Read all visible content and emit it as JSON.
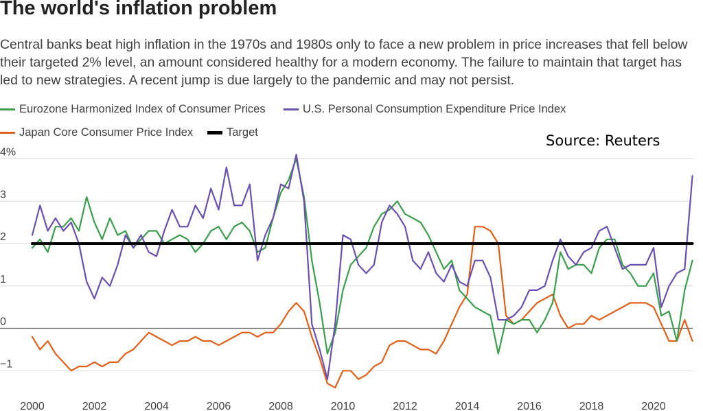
{
  "title": "The world's inflation problem",
  "subtitle": "Central banks beat high inflation in the 1970s and 1980s only to face a new problem in price increases that fell below their targeted 2% level, an amount considered healthy for a modern economy. The failure to maintain that target has led to new strategies. A recent jump is due largely to the pandemic and may not persist.",
  "source": "Source: Reuters",
  "colors": {
    "eurozone": "#3a9e4c",
    "us": "#6a4fb0",
    "japan": "#e0601a",
    "target": "#000000",
    "grid": "#d9d9d9",
    "zero_line": "#666666"
  },
  "chart_data": {
    "type": "line",
    "xlim": [
      2000,
      2021.5
    ],
    "ylim": [
      -1.5,
      4.2
    ],
    "x_ticks": [
      2000,
      2002,
      2004,
      2006,
      2008,
      2010,
      2012,
      2014,
      2016,
      2018,
      2020
    ],
    "x_tick_labels": [
      "2000",
      "2002",
      "2004",
      "2006",
      "2008",
      "2010",
      "2012",
      "2014",
      "2016",
      "2018",
      "2020"
    ],
    "y_ticks": [
      -1,
      0,
      1,
      2,
      3,
      4
    ],
    "y_tick_labels": [
      "−1",
      "0",
      "1",
      "2",
      "3",
      "4%"
    ],
    "grid": "horizontal",
    "legend_placement": "top-left",
    "series": [
      {
        "name": "Eurozone Harmonized Index of Consumer Prices",
        "color": "#3a9e4c",
        "points": [
          [
            2000.0,
            1.9
          ],
          [
            2000.25,
            2.1
          ],
          [
            2000.5,
            1.8
          ],
          [
            2000.75,
            2.4
          ],
          [
            2001.0,
            2.4
          ],
          [
            2001.25,
            2.6
          ],
          [
            2001.5,
            2.3
          ],
          [
            2001.75,
            3.1
          ],
          [
            2002.0,
            2.5
          ],
          [
            2002.25,
            2.1
          ],
          [
            2002.5,
            2.6
          ],
          [
            2002.75,
            2.2
          ],
          [
            2003.0,
            2.3
          ],
          [
            2003.25,
            1.9
          ],
          [
            2003.5,
            2.1
          ],
          [
            2003.75,
            2.3
          ],
          [
            2004.0,
            2.3
          ],
          [
            2004.25,
            2.0
          ],
          [
            2004.5,
            2.1
          ],
          [
            2004.75,
            2.2
          ],
          [
            2005.0,
            2.1
          ],
          [
            2005.25,
            1.8
          ],
          [
            2005.5,
            2.0
          ],
          [
            2005.75,
            2.3
          ],
          [
            2006.0,
            2.4
          ],
          [
            2006.25,
            2.1
          ],
          [
            2006.5,
            2.4
          ],
          [
            2006.75,
            2.5
          ],
          [
            2007.0,
            2.3
          ],
          [
            2007.25,
            1.8
          ],
          [
            2007.5,
            1.9
          ],
          [
            2007.75,
            2.6
          ],
          [
            2008.0,
            3.2
          ],
          [
            2008.25,
            3.5
          ],
          [
            2008.5,
            4.0
          ],
          [
            2008.75,
            3.1
          ],
          [
            2009.0,
            1.6
          ],
          [
            2009.25,
            0.6
          ],
          [
            2009.5,
            -0.6
          ],
          [
            2009.75,
            -0.1
          ],
          [
            2010.0,
            0.9
          ],
          [
            2010.25,
            1.5
          ],
          [
            2010.5,
            1.7
          ],
          [
            2010.75,
            1.9
          ],
          [
            2011.0,
            2.4
          ],
          [
            2011.25,
            2.7
          ],
          [
            2011.5,
            2.8
          ],
          [
            2011.75,
            3.0
          ],
          [
            2012.0,
            2.7
          ],
          [
            2012.25,
            2.6
          ],
          [
            2012.5,
            2.5
          ],
          [
            2012.75,
            2.2
          ],
          [
            2013.0,
            1.8
          ],
          [
            2013.25,
            1.4
          ],
          [
            2013.5,
            1.6
          ],
          [
            2013.75,
            0.9
          ],
          [
            2014.0,
            0.7
          ],
          [
            2014.25,
            0.5
          ],
          [
            2014.5,
            0.4
          ],
          [
            2014.75,
            0.3
          ],
          [
            2015.0,
            -0.6
          ],
          [
            2015.25,
            0.2
          ],
          [
            2015.5,
            0.1
          ],
          [
            2015.75,
            0.2
          ],
          [
            2016.0,
            0.2
          ],
          [
            2016.25,
            -0.1
          ],
          [
            2016.5,
            0.2
          ],
          [
            2016.75,
            0.6
          ],
          [
            2017.0,
            1.8
          ],
          [
            2017.25,
            1.4
          ],
          [
            2017.5,
            1.5
          ],
          [
            2017.75,
            1.5
          ],
          [
            2018.0,
            1.3
          ],
          [
            2018.25,
            1.9
          ],
          [
            2018.5,
            2.1
          ],
          [
            2018.75,
            2.1
          ],
          [
            2019.0,
            1.5
          ],
          [
            2019.25,
            1.3
          ],
          [
            2019.5,
            1.0
          ],
          [
            2019.75,
            1.0
          ],
          [
            2020.0,
            1.3
          ],
          [
            2020.25,
            0.3
          ],
          [
            2020.5,
            0.4
          ],
          [
            2020.75,
            -0.3
          ],
          [
            2021.0,
            0.9
          ],
          [
            2021.25,
            1.6
          ]
        ]
      },
      {
        "name": "U.S. Personal Consumption Expenditure Price Index",
        "color": "#6a4fb0",
        "points": [
          [
            2000.0,
            2.2
          ],
          [
            2000.25,
            2.9
          ],
          [
            2000.5,
            2.3
          ],
          [
            2000.75,
            2.6
          ],
          [
            2001.0,
            2.3
          ],
          [
            2001.25,
            2.5
          ],
          [
            2001.5,
            2.0
          ],
          [
            2001.75,
            1.1
          ],
          [
            2002.0,
            0.7
          ],
          [
            2002.25,
            1.2
          ],
          [
            2002.5,
            1.0
          ],
          [
            2002.75,
            1.5
          ],
          [
            2003.0,
            2.2
          ],
          [
            2003.25,
            1.9
          ],
          [
            2003.5,
            2.2
          ],
          [
            2003.75,
            1.8
          ],
          [
            2004.0,
            1.7
          ],
          [
            2004.25,
            2.3
          ],
          [
            2004.5,
            2.8
          ],
          [
            2004.75,
            2.4
          ],
          [
            2005.0,
            2.4
          ],
          [
            2005.25,
            2.9
          ],
          [
            2005.5,
            2.6
          ],
          [
            2005.75,
            3.3
          ],
          [
            2006.0,
            2.8
          ],
          [
            2006.25,
            3.8
          ],
          [
            2006.5,
            2.9
          ],
          [
            2006.75,
            2.9
          ],
          [
            2007.0,
            3.4
          ],
          [
            2007.25,
            1.6
          ],
          [
            2007.5,
            2.2
          ],
          [
            2007.75,
            2.6
          ],
          [
            2008.0,
            3.4
          ],
          [
            2008.25,
            3.3
          ],
          [
            2008.5,
            4.1
          ],
          [
            2008.75,
            3.0
          ],
          [
            2009.0,
            0.1
          ],
          [
            2009.25,
            -0.5
          ],
          [
            2009.5,
            -1.2
          ],
          [
            2009.75,
            0.1
          ],
          [
            2010.0,
            2.2
          ],
          [
            2010.25,
            2.1
          ],
          [
            2010.5,
            1.5
          ],
          [
            2010.75,
            1.3
          ],
          [
            2011.0,
            1.5
          ],
          [
            2011.25,
            2.5
          ],
          [
            2011.5,
            2.9
          ],
          [
            2011.75,
            2.7
          ],
          [
            2012.0,
            2.4
          ],
          [
            2012.25,
            1.6
          ],
          [
            2012.5,
            1.4
          ],
          [
            2012.75,
            1.8
          ],
          [
            2013.0,
            1.3
          ],
          [
            2013.25,
            1.1
          ],
          [
            2013.5,
            1.5
          ],
          [
            2013.75,
            1.1
          ],
          [
            2014.0,
            1.0
          ],
          [
            2014.25,
            1.6
          ],
          [
            2014.5,
            1.6
          ],
          [
            2014.75,
            1.2
          ],
          [
            2015.0,
            0.2
          ],
          [
            2015.25,
            0.2
          ],
          [
            2015.5,
            0.3
          ],
          [
            2015.75,
            0.5
          ],
          [
            2016.0,
            0.9
          ],
          [
            2016.25,
            0.9
          ],
          [
            2016.5,
            1.0
          ],
          [
            2016.75,
            1.6
          ],
          [
            2017.0,
            2.1
          ],
          [
            2017.25,
            1.7
          ],
          [
            2017.5,
            1.5
          ],
          [
            2017.75,
            1.8
          ],
          [
            2018.0,
            1.9
          ],
          [
            2018.25,
            2.3
          ],
          [
            2018.5,
            2.4
          ],
          [
            2018.75,
            1.9
          ],
          [
            2019.0,
            1.4
          ],
          [
            2019.25,
            1.5
          ],
          [
            2019.5,
            1.5
          ],
          [
            2019.75,
            1.5
          ],
          [
            2020.0,
            1.9
          ],
          [
            2020.25,
            0.5
          ],
          [
            2020.5,
            1.0
          ],
          [
            2020.75,
            1.3
          ],
          [
            2021.0,
            1.4
          ],
          [
            2021.25,
            3.6
          ]
        ]
      },
      {
        "name": "Japan Core Consumer Price Index",
        "color": "#e0601a",
        "points": [
          [
            2000.0,
            -0.2
          ],
          [
            2000.25,
            -0.5
          ],
          [
            2000.5,
            -0.3
          ],
          [
            2000.75,
            -0.6
          ],
          [
            2001.0,
            -0.8
          ],
          [
            2001.25,
            -1.0
          ],
          [
            2001.5,
            -0.9
          ],
          [
            2001.75,
            -0.9
          ],
          [
            2002.0,
            -0.8
          ],
          [
            2002.25,
            -0.9
          ],
          [
            2002.5,
            -0.8
          ],
          [
            2002.75,
            -0.8
          ],
          [
            2003.0,
            -0.6
          ],
          [
            2003.25,
            -0.5
          ],
          [
            2003.5,
            -0.3
          ],
          [
            2003.75,
            -0.1
          ],
          [
            2004.0,
            -0.2
          ],
          [
            2004.25,
            -0.3
          ],
          [
            2004.5,
            -0.4
          ],
          [
            2004.75,
            -0.3
          ],
          [
            2005.0,
            -0.3
          ],
          [
            2005.25,
            -0.2
          ],
          [
            2005.5,
            -0.3
          ],
          [
            2005.75,
            -0.3
          ],
          [
            2006.0,
            -0.4
          ],
          [
            2006.25,
            -0.3
          ],
          [
            2006.5,
            -0.2
          ],
          [
            2006.75,
            -0.1
          ],
          [
            2007.0,
            -0.1
          ],
          [
            2007.25,
            -0.2
          ],
          [
            2007.5,
            -0.1
          ],
          [
            2007.75,
            -0.1
          ],
          [
            2008.0,
            0.1
          ],
          [
            2008.25,
            0.4
          ],
          [
            2008.5,
            0.6
          ],
          [
            2008.75,
            0.4
          ],
          [
            2009.0,
            -0.2
          ],
          [
            2009.25,
            -0.7
          ],
          [
            2009.5,
            -1.3
          ],
          [
            2009.75,
            -1.4
          ],
          [
            2010.0,
            -1.0
          ],
          [
            2010.25,
            -1.0
          ],
          [
            2010.5,
            -1.2
          ],
          [
            2010.75,
            -1.1
          ],
          [
            2011.0,
            -0.9
          ],
          [
            2011.25,
            -0.8
          ],
          [
            2011.5,
            -0.4
          ],
          [
            2011.75,
            -0.3
          ],
          [
            2012.0,
            -0.3
          ],
          [
            2012.25,
            -0.4
          ],
          [
            2012.5,
            -0.5
          ],
          [
            2012.75,
            -0.5
          ],
          [
            2013.0,
            -0.6
          ],
          [
            2013.25,
            -0.3
          ],
          [
            2013.5,
            0.1
          ],
          [
            2013.75,
            0.5
          ],
          [
            2014.0,
            0.8
          ],
          [
            2014.25,
            2.4
          ],
          [
            2014.5,
            2.4
          ],
          [
            2014.75,
            2.3
          ],
          [
            2015.0,
            2.0
          ],
          [
            2015.25,
            0.3
          ],
          [
            2015.5,
            0.1
          ],
          [
            2015.75,
            0.2
          ],
          [
            2016.0,
            0.4
          ],
          [
            2016.25,
            0.6
          ],
          [
            2016.5,
            0.7
          ],
          [
            2016.75,
            0.8
          ],
          [
            2017.0,
            0.3
          ],
          [
            2017.25,
            0.0
          ],
          [
            2017.5,
            0.1
          ],
          [
            2017.75,
            0.1
          ],
          [
            2018.0,
            0.3
          ],
          [
            2018.25,
            0.2
          ],
          [
            2018.5,
            0.3
          ],
          [
            2018.75,
            0.4
          ],
          [
            2019.0,
            0.5
          ],
          [
            2019.25,
            0.6
          ],
          [
            2019.5,
            0.6
          ],
          [
            2019.75,
            0.6
          ],
          [
            2020.0,
            0.5
          ],
          [
            2020.25,
            0.1
          ],
          [
            2020.5,
            -0.3
          ],
          [
            2020.75,
            -0.3
          ],
          [
            2021.0,
            0.2
          ],
          [
            2021.25,
            -0.3
          ]
        ]
      },
      {
        "name": "Target",
        "color": "#000000",
        "points": [
          [
            2000.0,
            2.0
          ],
          [
            2021.25,
            2.0
          ]
        ]
      }
    ]
  }
}
